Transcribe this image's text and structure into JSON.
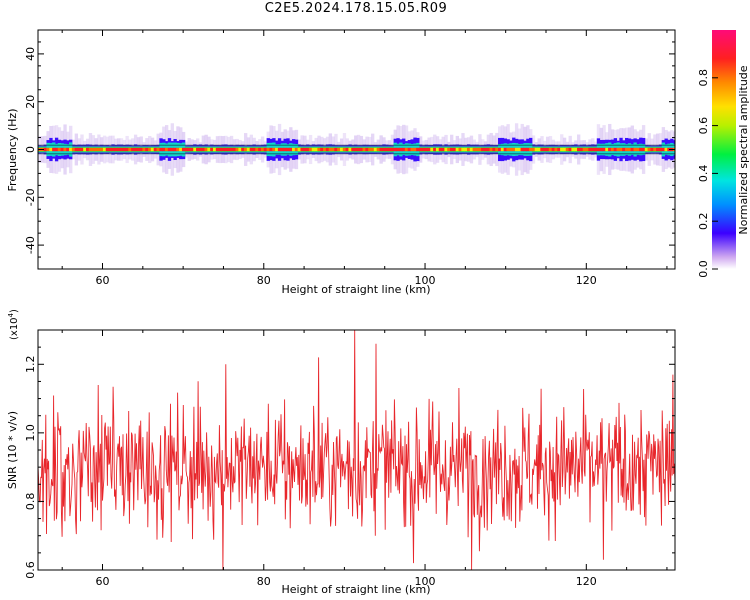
{
  "title": "C2E5.2024.178.15.05.R09",
  "chart_data": [
    {
      "type": "heatmap",
      "xlabel": "Height of straight line (km)",
      "ylabel": "Frequency (Hz)",
      "xlim": [
        52,
        131
      ],
      "ylim": [
        -50,
        50
      ],
      "xticks": [
        60,
        80,
        100,
        120
      ],
      "yticks": [
        -40,
        -20,
        0,
        20,
        40
      ],
      "colorbar": {
        "label": "Normalized spectral amplitude",
        "range": [
          0,
          1
        ],
        "ticks": [
          "0.0",
          "0.2",
          "0.4",
          "0.6",
          "0.8"
        ]
      },
      "description_values": {
        "center_frequency": 0,
        "wide_segments_km": [
          [
            53,
            56
          ],
          [
            67,
            70
          ],
          [
            80,
            84
          ],
          [
            96,
            99
          ],
          [
            109,
            113
          ],
          [
            121,
            127
          ],
          [
            129,
            131
          ]
        ]
      }
    },
    {
      "type": "line",
      "xlabel": "Height of straight line (km)",
      "ylabel": "SNR (10 * v/v)",
      "multiplier_label": "(x10",
      "multiplier_exp": "4",
      "multiplier_close": ")",
      "xlim": [
        52,
        131
      ],
      "ylim": [
        0.6,
        1.3
      ],
      "xticks": [
        60,
        80,
        100,
        120
      ],
      "yticks": [
        "0.6",
        "0.8",
        "1.0",
        "1.2"
      ],
      "series": [
        {
          "color": "#e8262b",
          "mean": 0.9,
          "approx_range": [
            0.6,
            1.3
          ],
          "notable_peaks": [
            [
              91.3,
              1.3
            ],
            [
              93.9,
              1.26
            ],
            [
              86.8,
              1.22
            ],
            [
              75.3,
              1.2
            ],
            [
              130.7,
              1.17
            ]
          ],
          "notable_dips": [
            [
              74.9,
              0.6
            ],
            [
              105.8,
              0.6
            ],
            [
              98.6,
              0.62
            ],
            [
              122.1,
              0.63
            ]
          ]
        }
      ]
    }
  ]
}
